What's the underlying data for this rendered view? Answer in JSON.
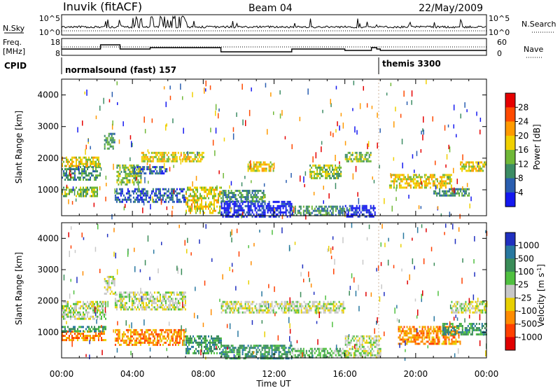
{
  "header": {
    "station": "Inuvik (fitACF)",
    "beam": "Beam 04",
    "date": "22/May/2009"
  },
  "top_panels": {
    "nsky_label": "N.Sky",
    "nsky_ticks": [
      "10^5",
      "10^0"
    ],
    "nsearch_label": "N.Search",
    "nsearch_ticks": [
      "10^5",
      "10^0"
    ],
    "freq_label_1": "Freq.",
    "freq_label_2": "[MHz]",
    "freq_ticks": [
      "18",
      "8"
    ],
    "nave_label": "Nave",
    "nave_ticks": [
      "60",
      "0"
    ],
    "cpid_label": "CPID",
    "cpid_segments": [
      {
        "name": "normalsound (fast) 157",
        "start_hour": 0
      },
      {
        "name": "themis 3300",
        "start_hour": 18
      }
    ]
  },
  "chart_data": [
    {
      "type": "heatmap",
      "name": "power-panel",
      "xlabel": "",
      "ylabel": "Slant Range [km]",
      "x_range_hours": [
        0,
        24
      ],
      "ylim": [
        180,
        4500
      ],
      "yticks": [
        1000,
        2000,
        3000,
        4000
      ],
      "colorbar": {
        "label": "Power [dB]",
        "ticks": [
          "28",
          "24",
          "20",
          "16",
          "12",
          "8",
          "4"
        ],
        "bins": [
          {
            "range": "28+",
            "color": "#e60000"
          },
          {
            "range": "24-28",
            "color": "#ff4a00"
          },
          {
            "range": "20-24",
            "color": "#ff9a00"
          },
          {
            "range": "16-20",
            "color": "#f0d000"
          },
          {
            "range": "12-16",
            "color": "#70b838"
          },
          {
            "range": "8-12",
            "color": "#3c8c64"
          },
          {
            "range": "4-8",
            "color": "#2a5eb0"
          },
          {
            "range": "0-4",
            "color": "#1418f0"
          }
        ]
      },
      "regions": [
        {
          "t": [
            0.0,
            2.2
          ],
          "r": [
            1350,
            1750
          ],
          "level": 5
        },
        {
          "t": [
            0.0,
            2.2
          ],
          "r": [
            1750,
            2050
          ],
          "level": 3
        },
        {
          "t": [
            0.0,
            2.0
          ],
          "r": [
            800,
            1100
          ],
          "level": 4
        },
        {
          "t": [
            2.4,
            3.0
          ],
          "r": [
            2300,
            2800
          ],
          "level": 5
        },
        {
          "t": [
            3.1,
            4.5
          ],
          "r": [
            1200,
            1800
          ],
          "level": 4
        },
        {
          "t": [
            4.0,
            6.0
          ],
          "r": [
            1500,
            1750
          ],
          "level": 6
        },
        {
          "t": [
            3.0,
            7.0
          ],
          "r": [
            600,
            1050
          ],
          "level": 6
        },
        {
          "t": [
            4.5,
            8.0
          ],
          "r": [
            1900,
            2200
          ],
          "level": 3
        },
        {
          "t": [
            7.0,
            9.0
          ],
          "r": [
            300,
            1100
          ],
          "level": 3
        },
        {
          "t": [
            9.0,
            13.0
          ],
          "r": [
            180,
            650
          ],
          "level": 7
        },
        {
          "t": [
            9.0,
            11.5
          ],
          "r": [
            650,
            1000
          ],
          "level": 5
        },
        {
          "t": [
            10.5,
            12.0
          ],
          "r": [
            1600,
            1900
          ],
          "level": 3
        },
        {
          "t": [
            13.0,
            16.0
          ],
          "r": [
            180,
            500
          ],
          "level": 5
        },
        {
          "t": [
            14.0,
            15.8
          ],
          "r": [
            1400,
            1800
          ],
          "level": 4
        },
        {
          "t": [
            16.0,
            17.7
          ],
          "r": [
            180,
            520
          ],
          "level": 7
        },
        {
          "t": [
            16.0,
            17.5
          ],
          "r": [
            1900,
            2200
          ],
          "level": 4
        },
        {
          "t": [
            18.5,
            22.0
          ],
          "r": [
            1050,
            1500
          ],
          "level": 3
        },
        {
          "t": [
            21.0,
            23.0
          ],
          "r": [
            800,
            1050
          ],
          "level": 5
        },
        {
          "t": [
            22.5,
            24.0
          ],
          "r": [
            1600,
            1900
          ],
          "level": 3
        }
      ]
    },
    {
      "type": "heatmap",
      "name": "velocity-panel",
      "xlabel": "Time UT",
      "ylabel": "Slant Range [km]",
      "x_range_hours": [
        0,
        24
      ],
      "xticks": [
        "00:00",
        "04:00",
        "08:00",
        "12:00",
        "16:00",
        "20:00",
        "00:00"
      ],
      "ylim": [
        180,
        4500
      ],
      "yticks": [
        1000,
        2000,
        3000,
        4000
      ],
      "colorbar": {
        "label": "Velocity [m s-1]",
        "label_display": "Velocity [m s",
        "label_superscript": "-1",
        "label_close": "]",
        "ticks": [
          "1000",
          "500",
          "100",
          "25",
          "-25",
          "-100",
          "-500",
          "-1000"
        ],
        "bins": [
          {
            "range": "1000+",
            "color": "#2030c0"
          },
          {
            "range": "500-1000",
            "color": "#2878a0"
          },
          {
            "range": "100-500",
            "color": "#3a8c58"
          },
          {
            "range": "25-100",
            "color": "#50c040"
          },
          {
            "range": "-25-25",
            "color": "#c8c8c8"
          },
          {
            "range": "-100 to -25",
            "color": "#e8d000"
          },
          {
            "range": "-500 to -100",
            "color": "#ff8c00"
          },
          {
            "range": "-1000 to -500",
            "color": "#ff4000"
          },
          {
            "range": "<-1000",
            "color": "#e00000"
          }
        ]
      },
      "regions": [
        {
          "t": [
            0.0,
            2.5
          ],
          "r": [
            1400,
            2000
          ],
          "level": 4
        },
        {
          "t": [
            0.0,
            2.5
          ],
          "r": [
            750,
            1050
          ],
          "level": 6
        },
        {
          "t": [
            0.0,
            2.5
          ],
          "r": [
            1050,
            1200
          ],
          "level": 2
        },
        {
          "t": [
            2.4,
            3.0
          ],
          "r": [
            2200,
            2800
          ],
          "level": 4
        },
        {
          "t": [
            3.0,
            7.0
          ],
          "r": [
            1700,
            2300
          ],
          "level": 4
        },
        {
          "t": [
            3.0,
            7.0
          ],
          "r": [
            600,
            1100
          ],
          "level": 6
        },
        {
          "t": [
            7.0,
            9.0
          ],
          "r": [
            300,
            900
          ],
          "level": 2
        },
        {
          "t": [
            9.0,
            13.0
          ],
          "r": [
            180,
            600
          ],
          "level": 2
        },
        {
          "t": [
            9.0,
            16.0
          ],
          "r": [
            1600,
            2000
          ],
          "level": 4
        },
        {
          "t": [
            13.0,
            16.0
          ],
          "r": [
            180,
            500
          ],
          "level": 3
        },
        {
          "t": [
            16.0,
            18.0
          ],
          "r": [
            180,
            900
          ],
          "level": 4
        },
        {
          "t": [
            19.0,
            22.5
          ],
          "r": [
            600,
            1200
          ],
          "level": 6
        },
        {
          "t": [
            21.5,
            24.0
          ],
          "r": [
            900,
            1300
          ],
          "level": 2
        },
        {
          "t": [
            22.0,
            24.0
          ],
          "r": [
            1600,
            2000
          ],
          "level": 4
        }
      ]
    }
  ],
  "colors": {
    "axes": "#000000",
    "dotted_series": "#000000",
    "background": "#ffffff"
  }
}
